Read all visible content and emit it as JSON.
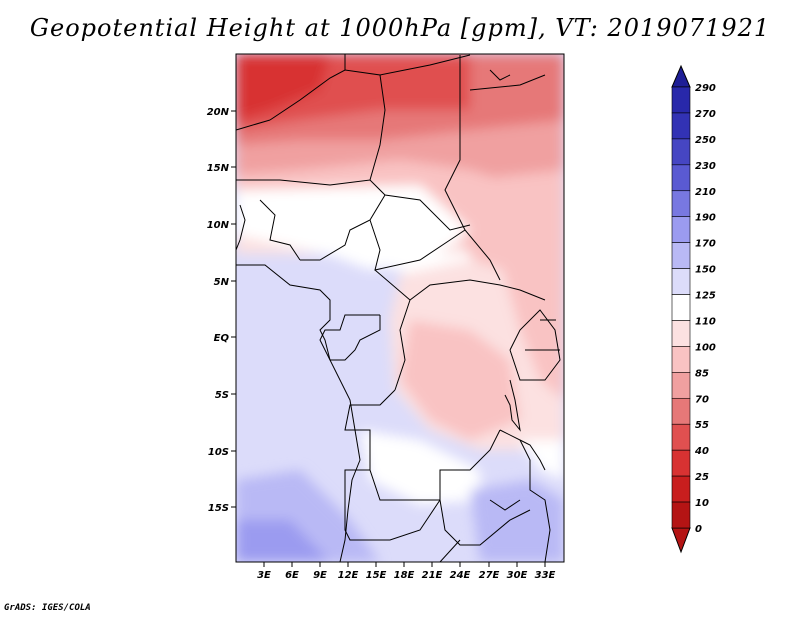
{
  "title": "Geopotential Height at 1000hPa [gpm], VT: 2019071921",
  "credit": "GrADS: IGES/COLA",
  "map": {
    "lat_labels": [
      "20N",
      "15N",
      "10N",
      "5N",
      "EQ",
      "5S",
      "10S",
      "15S"
    ],
    "lon_labels": [
      "3E",
      "6E",
      "9E",
      "12E",
      "15E",
      "18E",
      "21E",
      "24E",
      "27E",
      "30E",
      "33E"
    ]
  },
  "colorbar": {
    "labels": [
      "290",
      "270",
      "250",
      "230",
      "210",
      "190",
      "170",
      "150",
      "125",
      "110",
      "100",
      "85",
      "70",
      "55",
      "40",
      "25",
      "10",
      "0"
    ],
    "colors": [
      "#1e1e96",
      "#2828aa",
      "#3232b4",
      "#4646c3",
      "#5a5ad2",
      "#7878e1",
      "#9b9bf0",
      "#b9b9f5",
      "#dcdcfa",
      "#ffffff",
      "#fce1e1",
      "#f9c3c3",
      "#f0a0a0",
      "#e67878",
      "#e05050",
      "#d83232",
      "#c81e1e",
      "#b41414"
    ]
  }
}
